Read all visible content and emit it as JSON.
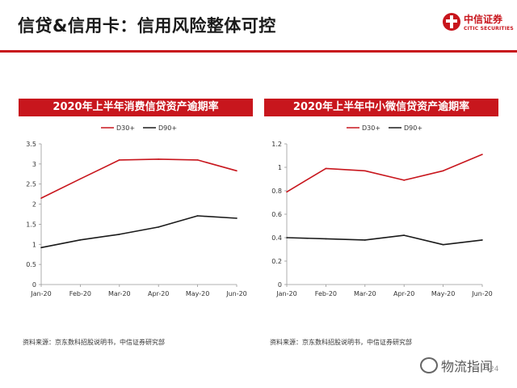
{
  "header": {
    "title": "信贷&信用卡：信用风险整体可控",
    "logo_cn": "中信证券",
    "logo_en": "CITIC SECURITIES"
  },
  "colors": {
    "accent": "#c8161d",
    "d30": "#c8161d",
    "d90": "#1a1a1a"
  },
  "chart_data": [
    {
      "type": "line",
      "title": "2020年上半年消费信贷资产逾期率",
      "categories": [
        "Jan-20",
        "Feb-20",
        "Mar-20",
        "Apr-20",
        "May-20",
        "Jun-20"
      ],
      "series": [
        {
          "name": "D30+",
          "values": [
            2.15,
            2.63,
            3.1,
            3.12,
            3.1,
            2.83
          ]
        },
        {
          "name": "D90+",
          "values": [
            0.92,
            1.11,
            1.25,
            1.43,
            1.71,
            1.65
          ]
        }
      ],
      "ylim": [
        0,
        3.5
      ],
      "yticks": [
        "0",
        "0.5",
        "1",
        "1.5",
        "2",
        "2.5",
        "3",
        "3.5"
      ],
      "legend": "top-center",
      "grid": false
    },
    {
      "type": "line",
      "title": "2020年上半年中小微信贷资产逾期率",
      "categories": [
        "Jan-20",
        "Feb-20",
        "Mar-20",
        "Apr-20",
        "May-20",
        "Jun-20"
      ],
      "series": [
        {
          "name": "D30+",
          "values": [
            0.79,
            0.99,
            0.97,
            0.89,
            0.97,
            1.11
          ]
        },
        {
          "name": "D90+",
          "values": [
            0.4,
            0.39,
            0.38,
            0.42,
            0.34,
            0.38
          ]
        }
      ],
      "ylim": [
        0,
        1.2
      ],
      "yticks": [
        "0",
        "0.2",
        "0.4",
        "0.6",
        "0.8",
        "1",
        "1.2"
      ],
      "legend": "top-center",
      "grid": false
    }
  ],
  "sources": [
    "资料来源：京东数科招股说明书，中信证券研究部",
    "资料来源：京东数科招股说明书，中信证券研究部"
  ],
  "watermark": "物流指闻",
  "page_number": "24"
}
